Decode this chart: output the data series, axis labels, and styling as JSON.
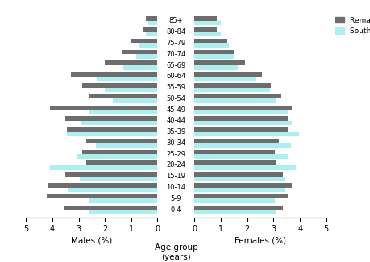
{
  "age_groups": [
    "0-4",
    "5-9",
    "10-14",
    "15-19",
    "20-24",
    "25-29",
    "30-34",
    "35-39",
    "40-44",
    "45-49",
    "50-54",
    "55-59",
    "60-64",
    "65-69",
    "70-74",
    "75-79",
    "80-84",
    "85+"
  ],
  "males_remainder": [
    3.55,
    4.2,
    4.15,
    3.5,
    2.7,
    2.85,
    2.7,
    3.45,
    3.5,
    4.1,
    2.6,
    2.85,
    3.3,
    2.0,
    1.35,
    1.0,
    0.55,
    0.45
  ],
  "males_seqld": [
    2.6,
    2.6,
    3.4,
    2.95,
    4.1,
    3.05,
    2.35,
    3.45,
    2.9,
    2.6,
    1.7,
    2.0,
    2.3,
    1.3,
    0.8,
    0.7,
    0.45,
    0.35
  ],
  "females_remainder": [
    3.35,
    3.55,
    3.7,
    3.35,
    3.1,
    3.05,
    3.2,
    3.55,
    3.55,
    3.7,
    3.25,
    2.9,
    2.55,
    1.9,
    1.5,
    1.2,
    0.85,
    0.85
  ],
  "females_seqld": [
    3.1,
    3.05,
    3.4,
    3.45,
    3.85,
    3.55,
    3.65,
    3.95,
    3.7,
    3.55,
    3.1,
    2.85,
    2.35,
    1.65,
    1.5,
    1.3,
    1.0,
    1.0
  ],
  "color_remainder": "#6d6d6d",
  "color_seqld": "#aaf0f0",
  "xlabel_left": "Males (%)",
  "xlabel_right": "Females (%)",
  "xlabel_center": "Age group\n(years)",
  "xlim": 5.0,
  "bar_height": 0.4
}
